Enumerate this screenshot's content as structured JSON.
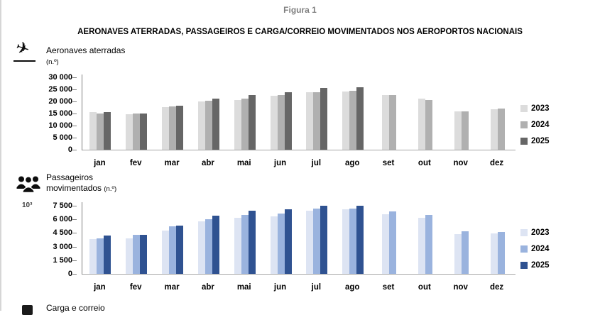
{
  "page": {
    "figure_label": "Figura 1",
    "title": "AERONAVES ATERRADAS, PASSAGEIROS E CARGA/CORREIO MOVIMENTADOS NOS AEROPORTOS NACIONAIS"
  },
  "colors": {
    "gray_2023": "#dcdcdc",
    "gray_2024": "#b0b0b0",
    "gray_2025": "#666666",
    "blue_2023": "#dde4f3",
    "blue_2024": "#9ab3de",
    "blue_2025": "#2f5291",
    "axis": "#7f7f7f",
    "figure_label_gray": "#7f7f7f"
  },
  "sections": {
    "aeronaves": {
      "title": "Aeronaves aterradas",
      "unit": "(n.º)",
      "icon": "plane-landing-icon"
    },
    "passageiros": {
      "title_line1": "Passageiros",
      "title_line2": "movimentados",
      "unit": "(n.º)",
      "scale": "10³",
      "icon": "people-icon"
    },
    "carga": {
      "title": "Carga e correio",
      "icon": "cargo-box-icon"
    }
  },
  "chart_data": [
    {
      "type": "bar",
      "title": "Aeronaves aterradas",
      "ylabel": "n.º",
      "grid": false,
      "legend_position": "right",
      "ylim": [
        0,
        30000
      ],
      "categories": [
        "jan",
        "fev",
        "mar",
        "abr",
        "mai",
        "jun",
        "jul",
        "ago",
        "set",
        "out",
        "nov",
        "dez"
      ],
      "yticks": [
        {
          "label": "30 000",
          "value": 30000
        },
        {
          "label": "25 000",
          "value": 25000
        },
        {
          "label": "20 000",
          "value": 20000
        },
        {
          "label": "15 000",
          "value": 15000
        },
        {
          "label": "10 000",
          "value": 10000
        },
        {
          "label": "5 000",
          "value": 5000
        },
        {
          "label": "0",
          "value": 0
        }
      ],
      "series": [
        {
          "name": "2023",
          "color": "#dcdcdc",
          "values": [
            16000,
            14900,
            17800,
            20400,
            21000,
            22500,
            24200,
            24500,
            23000,
            21500,
            16200,
            17000
          ]
        },
        {
          "name": "2024",
          "color": "#b0b0b0",
          "values": [
            15300,
            15300,
            18200,
            20500,
            21500,
            22800,
            24200,
            24800,
            23000,
            21000,
            16300,
            17400
          ]
        },
        {
          "name": "2025",
          "color": "#666666",
          "values": [
            15900,
            15300,
            18500,
            21500,
            22900,
            24200,
            25800,
            26200,
            null,
            null,
            null,
            null
          ]
        }
      ]
    },
    {
      "type": "bar",
      "title": "Passageiros movimentados",
      "ylabel": "10³ n.º",
      "grid": false,
      "legend_position": "right",
      "ylim": [
        0,
        7500
      ],
      "categories": [
        "jan",
        "fev",
        "mar",
        "abr",
        "mai",
        "jun",
        "jul",
        "ago",
        "set",
        "out",
        "nov",
        "dez"
      ],
      "yticks": [
        {
          "label": "7 500",
          "value": 7500
        },
        {
          "label": "6 000",
          "value": 6000
        },
        {
          "label": "4 500",
          "value": 4500
        },
        {
          "label": "3 000",
          "value": 3000
        },
        {
          "label": "1 500",
          "value": 1500
        },
        {
          "label": "0",
          "value": 0
        }
      ],
      "series": [
        {
          "name": "2023",
          "color": "#dde4f3",
          "values": [
            3900,
            4000,
            4850,
            5850,
            6250,
            6400,
            7000,
            7150,
            6650,
            6250,
            4450,
            4500
          ]
        },
        {
          "name": "2024",
          "color": "#9ab3de",
          "values": [
            4000,
            4400,
            5350,
            6100,
            6550,
            6700,
            7250,
            7300,
            6950,
            6550,
            4750,
            4700
          ]
        },
        {
          "name": "2025",
          "color": "#2f5291",
          "values": [
            4300,
            4400,
            5400,
            6500,
            7000,
            7200,
            7550,
            7600,
            null,
            null,
            null,
            null
          ]
        }
      ]
    },
    {
      "type": "bar",
      "title": "Carga e correio",
      "note": "section cut off at bottom of screenshot"
    }
  ]
}
